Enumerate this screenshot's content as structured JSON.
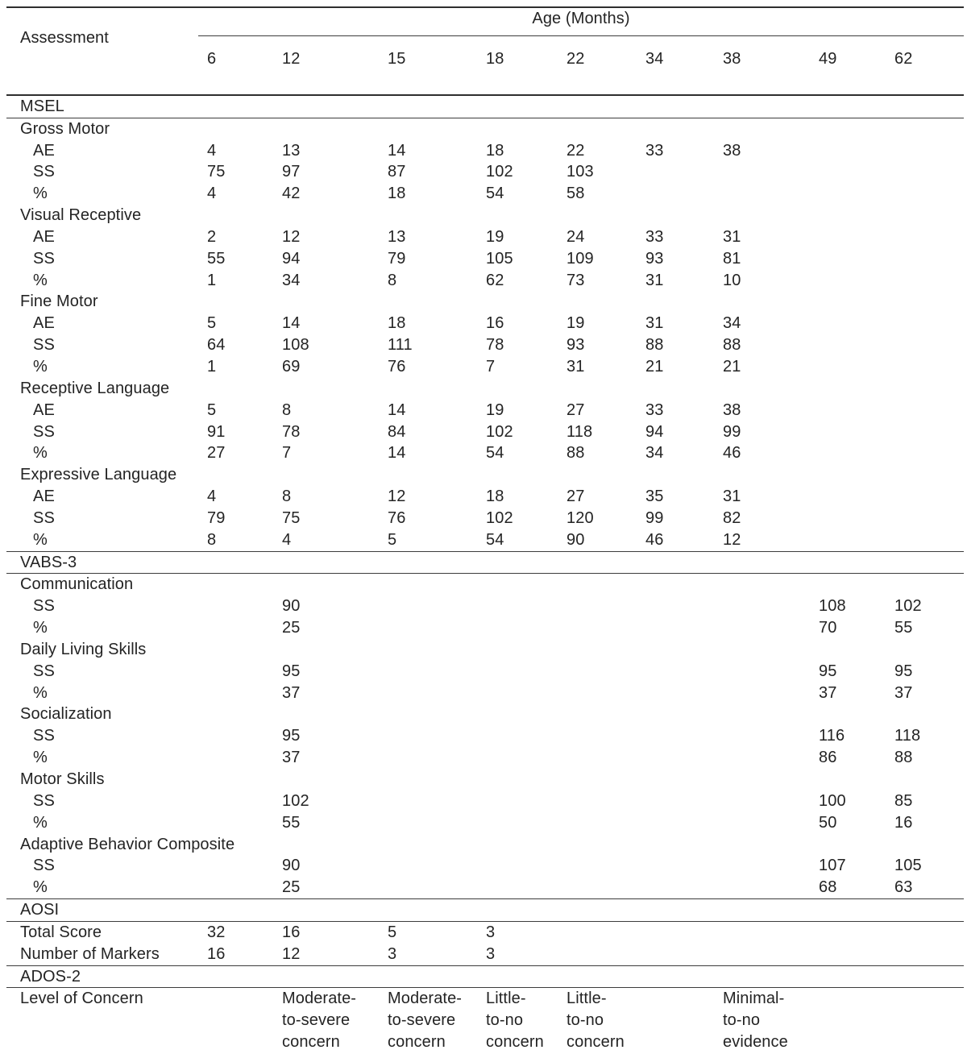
{
  "table": {
    "corner_header": "Assessment",
    "age_header": "Age (Months)",
    "ages": [
      "6",
      "12",
      "15",
      "18",
      "22",
      "34",
      "38",
      "49",
      "62"
    ],
    "rows": [
      {
        "type": "section",
        "label": "MSEL",
        "values": [
          "",
          "",
          "",
          "",
          "",
          "",
          "",
          "",
          ""
        ]
      },
      {
        "type": "group",
        "label": "Gross Motor",
        "values": [
          "",
          "",
          "",
          "",
          "",
          "",
          "",
          "",
          ""
        ]
      },
      {
        "type": "sub",
        "label": "AE",
        "values": [
          "4",
          "13",
          "14",
          "18",
          "22",
          "33",
          "38",
          "",
          ""
        ]
      },
      {
        "type": "sub",
        "label": "SS",
        "values": [
          "75",
          "97",
          "87",
          "102",
          "103",
          "",
          "",
          "",
          ""
        ]
      },
      {
        "type": "sub",
        "label": "%",
        "values": [
          "4",
          "42",
          "18",
          "54",
          "58",
          "",
          "",
          "",
          ""
        ]
      },
      {
        "type": "group",
        "label": "Visual Receptive",
        "values": [
          "",
          "",
          "",
          "",
          "",
          "",
          "",
          "",
          ""
        ]
      },
      {
        "type": "sub",
        "label": "AE",
        "values": [
          "2",
          "12",
          "13",
          "19",
          "24",
          "33",
          "31",
          "",
          ""
        ]
      },
      {
        "type": "sub",
        "label": "SS",
        "values": [
          "55",
          "94",
          "79",
          "105",
          "109",
          "93",
          "81",
          "",
          ""
        ]
      },
      {
        "type": "sub",
        "label": "%",
        "values": [
          "1",
          "34",
          "8",
          "62",
          "73",
          "31",
          "10",
          "",
          ""
        ]
      },
      {
        "type": "group",
        "label": "Fine Motor",
        "values": [
          "",
          "",
          "",
          "",
          "",
          "",
          "",
          "",
          ""
        ]
      },
      {
        "type": "sub",
        "label": "AE",
        "values": [
          "5",
          "14",
          "18",
          "16",
          "19",
          "31",
          "34",
          "",
          ""
        ]
      },
      {
        "type": "sub",
        "label": "SS",
        "values": [
          "64",
          "108",
          "111",
          "78",
          "93",
          "88",
          "88",
          "",
          ""
        ]
      },
      {
        "type": "sub",
        "label": "%",
        "values": [
          "1",
          "69",
          "76",
          "7",
          "31",
          "21",
          "21",
          "",
          ""
        ]
      },
      {
        "type": "group",
        "label": "Receptive Language",
        "values": [
          "",
          "",
          "",
          "",
          "",
          "",
          "",
          "",
          ""
        ]
      },
      {
        "type": "sub",
        "label": "AE",
        "values": [
          "5",
          "8",
          "14",
          "19",
          "27",
          "33",
          "38",
          "",
          ""
        ]
      },
      {
        "type": "sub",
        "label": "SS",
        "values": [
          "91",
          "78",
          "84",
          "102",
          "118",
          "94",
          "99",
          "",
          ""
        ]
      },
      {
        "type": "sub",
        "label": "%",
        "values": [
          "27",
          "7",
          "14",
          "54",
          "88",
          "34",
          "46",
          "",
          ""
        ]
      },
      {
        "type": "group",
        "label": "Expressive Language",
        "values": [
          "",
          "",
          "",
          "",
          "",
          "",
          "",
          "",
          ""
        ]
      },
      {
        "type": "sub",
        "label": "AE",
        "values": [
          "4",
          "8",
          "12",
          "18",
          "27",
          "35",
          "31",
          "",
          ""
        ]
      },
      {
        "type": "sub",
        "label": "SS",
        "values": [
          "79",
          "75",
          "76",
          "102",
          "120",
          "99",
          "82",
          "",
          ""
        ]
      },
      {
        "type": "sub",
        "label": "%",
        "values": [
          "8",
          "4",
          "5",
          "54",
          "90",
          "46",
          "12",
          "",
          ""
        ]
      },
      {
        "type": "section",
        "label": "VABS-3",
        "values": [
          "",
          "",
          "",
          "",
          "",
          "",
          "",
          "",
          ""
        ]
      },
      {
        "type": "group",
        "label": "Communication",
        "values": [
          "",
          "",
          "",
          "",
          "",
          "",
          "",
          "",
          ""
        ]
      },
      {
        "type": "sub",
        "label": "SS",
        "values": [
          "",
          "90",
          "",
          "",
          "",
          "",
          "",
          "108",
          "102"
        ]
      },
      {
        "type": "sub",
        "label": "%",
        "values": [
          "",
          "25",
          "",
          "",
          "",
          "",
          "",
          "70",
          "55"
        ]
      },
      {
        "type": "group",
        "label": "Daily Living Skills",
        "values": [
          "",
          "",
          "",
          "",
          "",
          "",
          "",
          "",
          ""
        ]
      },
      {
        "type": "sub",
        "label": "SS",
        "values": [
          "",
          "95",
          "",
          "",
          "",
          "",
          "",
          "95",
          "95"
        ]
      },
      {
        "type": "sub",
        "label": "%",
        "values": [
          "",
          "37",
          "",
          "",
          "",
          "",
          "",
          "37",
          "37"
        ]
      },
      {
        "type": "group",
        "label": "Socialization",
        "values": [
          "",
          "",
          "",
          "",
          "",
          "",
          "",
          "",
          ""
        ]
      },
      {
        "type": "sub",
        "label": "SS",
        "values": [
          "",
          "95",
          "",
          "",
          "",
          "",
          "",
          "116",
          "118"
        ]
      },
      {
        "type": "sub",
        "label": "%",
        "values": [
          "",
          "37",
          "",
          "",
          "",
          "",
          "",
          "86",
          "88"
        ]
      },
      {
        "type": "group",
        "label": "Motor Skills",
        "values": [
          "",
          "",
          "",
          "",
          "",
          "",
          "",
          "",
          ""
        ]
      },
      {
        "type": "sub",
        "label": "SS",
        "values": [
          "",
          "102",
          "",
          "",
          "",
          "",
          "",
          "100",
          "85"
        ]
      },
      {
        "type": "sub",
        "label": "%",
        "values": [
          "",
          "55",
          "",
          "",
          "",
          "",
          "",
          "50",
          "16"
        ]
      },
      {
        "type": "group",
        "label": "Adaptive Behavior Composite",
        "values": [
          "",
          "",
          "",
          "",
          "",
          "",
          "",
          "",
          ""
        ]
      },
      {
        "type": "sub",
        "label": "SS",
        "values": [
          "",
          "90",
          "",
          "",
          "",
          "",
          "",
          "107",
          "105"
        ]
      },
      {
        "type": "sub",
        "label": "%",
        "values": [
          "",
          "25",
          "",
          "",
          "",
          "",
          "",
          "68",
          "63"
        ]
      },
      {
        "type": "section",
        "label": "AOSI",
        "values": [
          "",
          "",
          "",
          "",
          "",
          "",
          "",
          "",
          ""
        ]
      },
      {
        "type": "data",
        "label": "Total Score",
        "values": [
          "32",
          "16",
          "5",
          "3",
          "",
          "",
          "",
          "",
          ""
        ]
      },
      {
        "type": "data",
        "label": "Number of Markers",
        "values": [
          "16",
          "12",
          "3",
          "3",
          "",
          "",
          "",
          "",
          ""
        ]
      },
      {
        "type": "section",
        "label": "ADOS-2",
        "values": [
          "",
          "",
          "",
          "",
          "",
          "",
          "",
          "",
          ""
        ]
      },
      {
        "type": "data",
        "label": "Level of Concern",
        "values": [
          "",
          "Moderate-\nto-severe\nconcern",
          "Moderate-\nto-severe\nconcern",
          "Little-\nto-no\nconcern",
          "Little-\nto-no\nconcern",
          "",
          "Minimal-\nto-no\nevidence",
          "",
          ""
        ]
      }
    ]
  }
}
